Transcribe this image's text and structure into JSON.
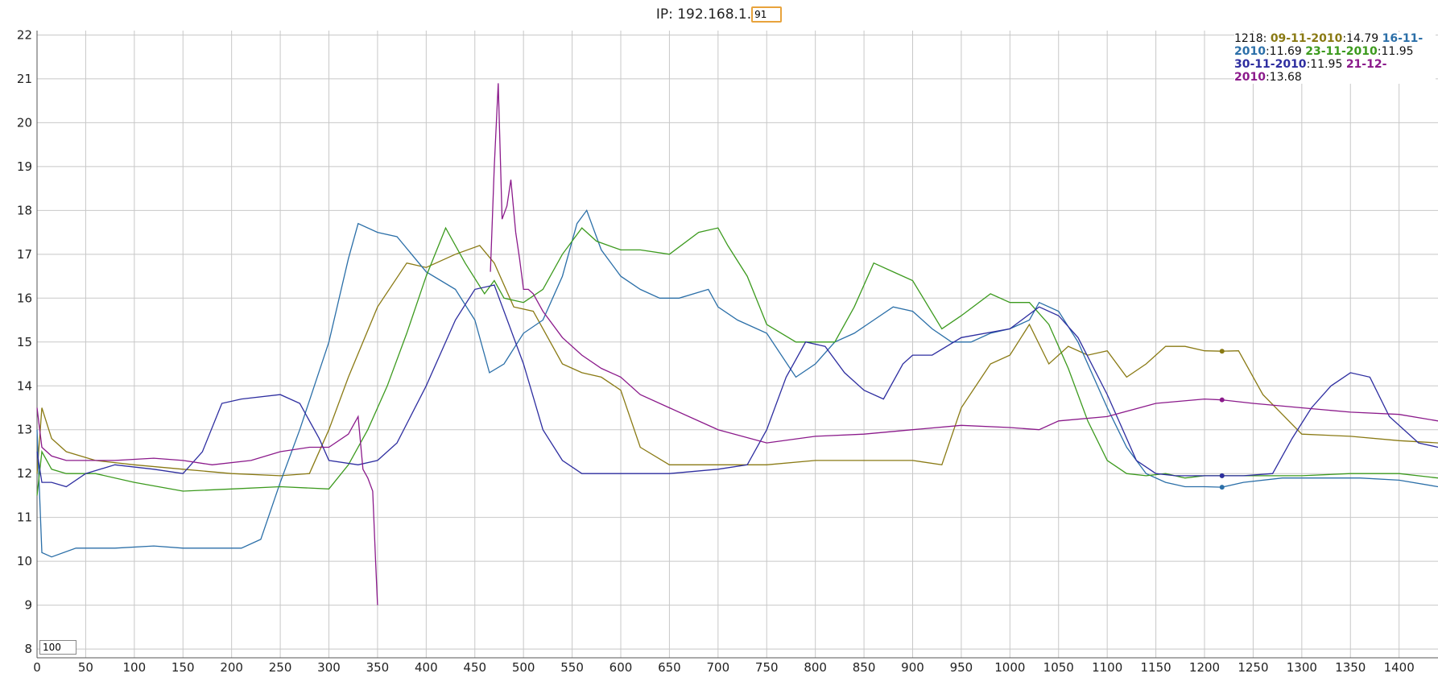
{
  "ip": {
    "label": "IP: 192.168.1.",
    "octet": "91"
  },
  "window_size": "100",
  "legend": {
    "prefix": "1218:",
    "entries": [
      {
        "date": "09-11-2010",
        "value": ":14.79",
        "color": "#8a7a14"
      },
      {
        "date": "16-11-2010",
        "value": ":11.69",
        "color": "#2b6fa8"
      },
      {
        "date": "23-11-2010",
        "value": ":11.95",
        "color": "#3c9a1e"
      },
      {
        "date": "30-11-2010",
        "value": ":11.95",
        "color": "#2e2ea0"
      },
      {
        "date": "21-12-2010",
        "value": ":13.68",
        "color": "#8b1a8b"
      }
    ]
  },
  "chart_data": {
    "type": "line",
    "title": "",
    "xlabel": "",
    "ylabel": "",
    "xlim": [
      0,
      1440
    ],
    "ylim": [
      7.8,
      22.1
    ],
    "x_ticks": [
      0,
      50,
      100,
      150,
      200,
      250,
      300,
      350,
      400,
      450,
      500,
      550,
      600,
      650,
      700,
      750,
      800,
      850,
      900,
      950,
      1000,
      1050,
      1100,
      1150,
      1200,
      1250,
      1300,
      1350,
      1400
    ],
    "y_ticks": [
      8,
      9,
      10,
      11,
      12,
      13,
      14,
      15,
      16,
      17,
      18,
      19,
      20,
      21,
      22
    ],
    "grid": true,
    "legend_position": "top-right",
    "marker_x": 1218,
    "series": [
      {
        "name": "09-11-2010",
        "color": "#8a7a14",
        "x": [
          0,
          5,
          15,
          30,
          60,
          100,
          150,
          200,
          250,
          280,
          300,
          320,
          350,
          380,
          400,
          430,
          455,
          470,
          490,
          510,
          540,
          560,
          580,
          600,
          620,
          650,
          700,
          750,
          800,
          850,
          900,
          930,
          950,
          980,
          1000,
          1020,
          1040,
          1060,
          1080,
          1100,
          1120,
          1140,
          1160,
          1180,
          1200,
          1218,
          1235,
          1260,
          1300,
          1350,
          1400,
          1440
        ],
        "y": [
          12.0,
          13.5,
          12.8,
          12.5,
          12.3,
          12.2,
          12.1,
          12.0,
          11.95,
          12.0,
          13.0,
          14.2,
          15.8,
          16.8,
          16.7,
          17.0,
          17.2,
          16.8,
          15.8,
          15.7,
          14.5,
          14.3,
          14.2,
          13.9,
          12.6,
          12.2,
          12.2,
          12.2,
          12.3,
          12.3,
          12.3,
          12.2,
          13.5,
          14.5,
          14.7,
          15.4,
          14.5,
          14.9,
          14.7,
          14.8,
          14.2,
          14.5,
          14.9,
          14.9,
          14.8,
          14.79,
          14.8,
          13.8,
          12.9,
          12.85,
          12.75,
          12.7
        ]
      },
      {
        "name": "16-11-2010",
        "color": "#2b6fa8",
        "x": [
          0,
          5,
          15,
          40,
          80,
          120,
          150,
          180,
          210,
          230,
          250,
          270,
          300,
          320,
          330,
          350,
          370,
          400,
          430,
          450,
          465,
          480,
          500,
          520,
          540,
          555,
          565,
          580,
          600,
          620,
          640,
          660,
          690,
          700,
          720,
          750,
          780,
          800,
          820,
          840,
          860,
          880,
          900,
          920,
          940,
          960,
          980,
          1000,
          1020,
          1030,
          1050,
          1070,
          1100,
          1120,
          1140,
          1160,
          1180,
          1200,
          1218,
          1240,
          1280,
          1320,
          1360,
          1400,
          1440
        ],
        "y": [
          13.0,
          10.2,
          10.1,
          10.3,
          10.3,
          10.35,
          10.3,
          10.3,
          10.3,
          10.5,
          11.8,
          13.0,
          15.0,
          16.9,
          17.7,
          17.5,
          17.4,
          16.6,
          16.2,
          15.5,
          14.3,
          14.5,
          15.2,
          15.5,
          16.5,
          17.7,
          18.0,
          17.1,
          16.5,
          16.2,
          16.0,
          16.0,
          16.2,
          15.8,
          15.5,
          15.2,
          14.2,
          14.5,
          15.0,
          15.2,
          15.5,
          15.8,
          15.7,
          15.3,
          15.0,
          15.0,
          15.2,
          15.3,
          15.5,
          15.9,
          15.7,
          15.0,
          13.5,
          12.6,
          12.0,
          11.8,
          11.7,
          11.7,
          11.69,
          11.8,
          11.9,
          11.9,
          11.9,
          11.85,
          11.7
        ]
      },
      {
        "name": "23-11-2010",
        "color": "#3c9a1e",
        "x": [
          0,
          5,
          15,
          30,
          60,
          100,
          150,
          200,
          250,
          300,
          320,
          340,
          360,
          380,
          400,
          420,
          440,
          460,
          470,
          480,
          500,
          520,
          540,
          560,
          575,
          600,
          620,
          650,
          680,
          700,
          710,
          730,
          750,
          780,
          800,
          820,
          840,
          860,
          880,
          900,
          930,
          950,
          980,
          1000,
          1020,
          1040,
          1060,
          1080,
          1100,
          1120,
          1140,
          1160,
          1180,
          1200,
          1218,
          1250,
          1300,
          1350,
          1400,
          1440
        ],
        "y": [
          11.5,
          12.5,
          12.1,
          12.0,
          12.0,
          11.8,
          11.6,
          11.65,
          11.7,
          11.65,
          12.2,
          13.0,
          14.0,
          15.2,
          16.5,
          17.6,
          16.8,
          16.1,
          16.4,
          16.0,
          15.9,
          16.2,
          17.0,
          17.6,
          17.3,
          17.1,
          17.1,
          17.0,
          17.5,
          17.6,
          17.2,
          16.5,
          15.4,
          15.0,
          15.0,
          15.0,
          15.8,
          16.8,
          16.6,
          16.4,
          15.3,
          15.6,
          16.1,
          15.9,
          15.9,
          15.4,
          14.4,
          13.2,
          12.3,
          12.0,
          11.95,
          12.0,
          11.9,
          11.95,
          11.95,
          11.95,
          11.95,
          12.0,
          12.0,
          11.9
        ]
      },
      {
        "name": "30-11-2010",
        "color": "#2e2ea0",
        "x": [
          0,
          5,
          15,
          30,
          50,
          80,
          120,
          150,
          170,
          190,
          210,
          250,
          270,
          290,
          300,
          330,
          350,
          370,
          400,
          430,
          450,
          470,
          500,
          520,
          540,
          560,
          600,
          650,
          700,
          730,
          750,
          770,
          790,
          810,
          830,
          850,
          870,
          890,
          900,
          920,
          950,
          1000,
          1030,
          1050,
          1070,
          1100,
          1130,
          1150,
          1170,
          1200,
          1218,
          1240,
          1270,
          1290,
          1310,
          1330,
          1350,
          1370,
          1390,
          1420,
          1440
        ],
        "y": [
          12.5,
          11.8,
          11.8,
          11.7,
          12.0,
          12.2,
          12.1,
          12.0,
          12.5,
          13.6,
          13.7,
          13.8,
          13.6,
          12.8,
          12.3,
          12.2,
          12.3,
          12.7,
          14.0,
          15.5,
          16.2,
          16.3,
          14.5,
          13.0,
          12.3,
          12.0,
          12.0,
          12.0,
          12.1,
          12.2,
          13.0,
          14.2,
          15.0,
          14.9,
          14.3,
          13.9,
          13.7,
          14.5,
          14.7,
          14.7,
          15.1,
          15.3,
          15.8,
          15.6,
          15.1,
          13.8,
          12.3,
          12.0,
          11.95,
          11.95,
          11.95,
          11.95,
          12.0,
          12.8,
          13.5,
          14.0,
          14.3,
          14.2,
          13.3,
          12.7,
          12.6
        ]
      },
      {
        "name": "21-12-2010",
        "color": "#8b1a8b",
        "x": [
          0,
          5,
          15,
          30,
          50,
          80,
          120,
          150,
          180,
          220,
          250,
          280,
          300,
          320,
          330,
          335,
          340,
          345,
          348,
          350
        ],
        "y": [
          13.5,
          12.6,
          12.4,
          12.3,
          12.3,
          12.3,
          12.35,
          12.3,
          12.2,
          12.3,
          12.5,
          12.6,
          12.6,
          12.9,
          13.3,
          12.1,
          11.9,
          11.6,
          10.0,
          9.0
        ]
      },
      {
        "name": "21-12-2010-b",
        "color": "#8b1a8b",
        "x": [
          466,
          470,
          474,
          478,
          483,
          487,
          492,
          496,
          500,
          505,
          510,
          520,
          540,
          560,
          580,
          600,
          620,
          650,
          700,
          750,
          800,
          850,
          900,
          950,
          1000,
          1030,
          1050,
          1100,
          1150,
          1200,
          1218,
          1250,
          1300,
          1350,
          1400,
          1440
        ],
        "y": [
          16.6,
          19.0,
          20.9,
          17.8,
          18.1,
          18.7,
          17.5,
          16.9,
          16.2,
          16.2,
          16.1,
          15.7,
          15.1,
          14.7,
          14.4,
          14.2,
          13.8,
          13.5,
          13.0,
          12.7,
          12.85,
          12.9,
          13.0,
          13.1,
          13.05,
          13.0,
          13.2,
          13.3,
          13.6,
          13.7,
          13.68,
          13.6,
          13.5,
          13.4,
          13.35,
          13.2
        ]
      }
    ]
  }
}
